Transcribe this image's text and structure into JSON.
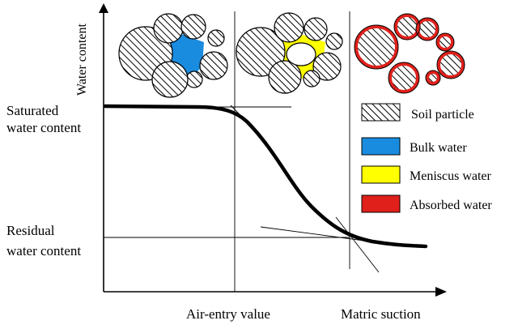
{
  "axes": {
    "y_label": "Water content",
    "x_label": "Matric suction",
    "x_tick": "Air-entry value"
  },
  "y_markers": {
    "saturated": [
      "Saturated",
      "water content"
    ],
    "residual": [
      "Residual",
      "water content"
    ]
  },
  "legend": [
    {
      "label": "Soil particle",
      "swatch": "hatched",
      "color": "#000000"
    },
    {
      "label": "Bulk water",
      "swatch": "fill",
      "color": "#1a8ce0"
    },
    {
      "label": "Meniscus water",
      "swatch": "fill",
      "color": "#ffff00"
    },
    {
      "label": "Absorbed water",
      "swatch": "fill",
      "color": "#e0201b"
    }
  ],
  "colors": {
    "bulk_water": "#1a8ce0",
    "meniscus_water": "#ffff00",
    "absorbed_water": "#e0201b",
    "line": "#000000"
  }
}
